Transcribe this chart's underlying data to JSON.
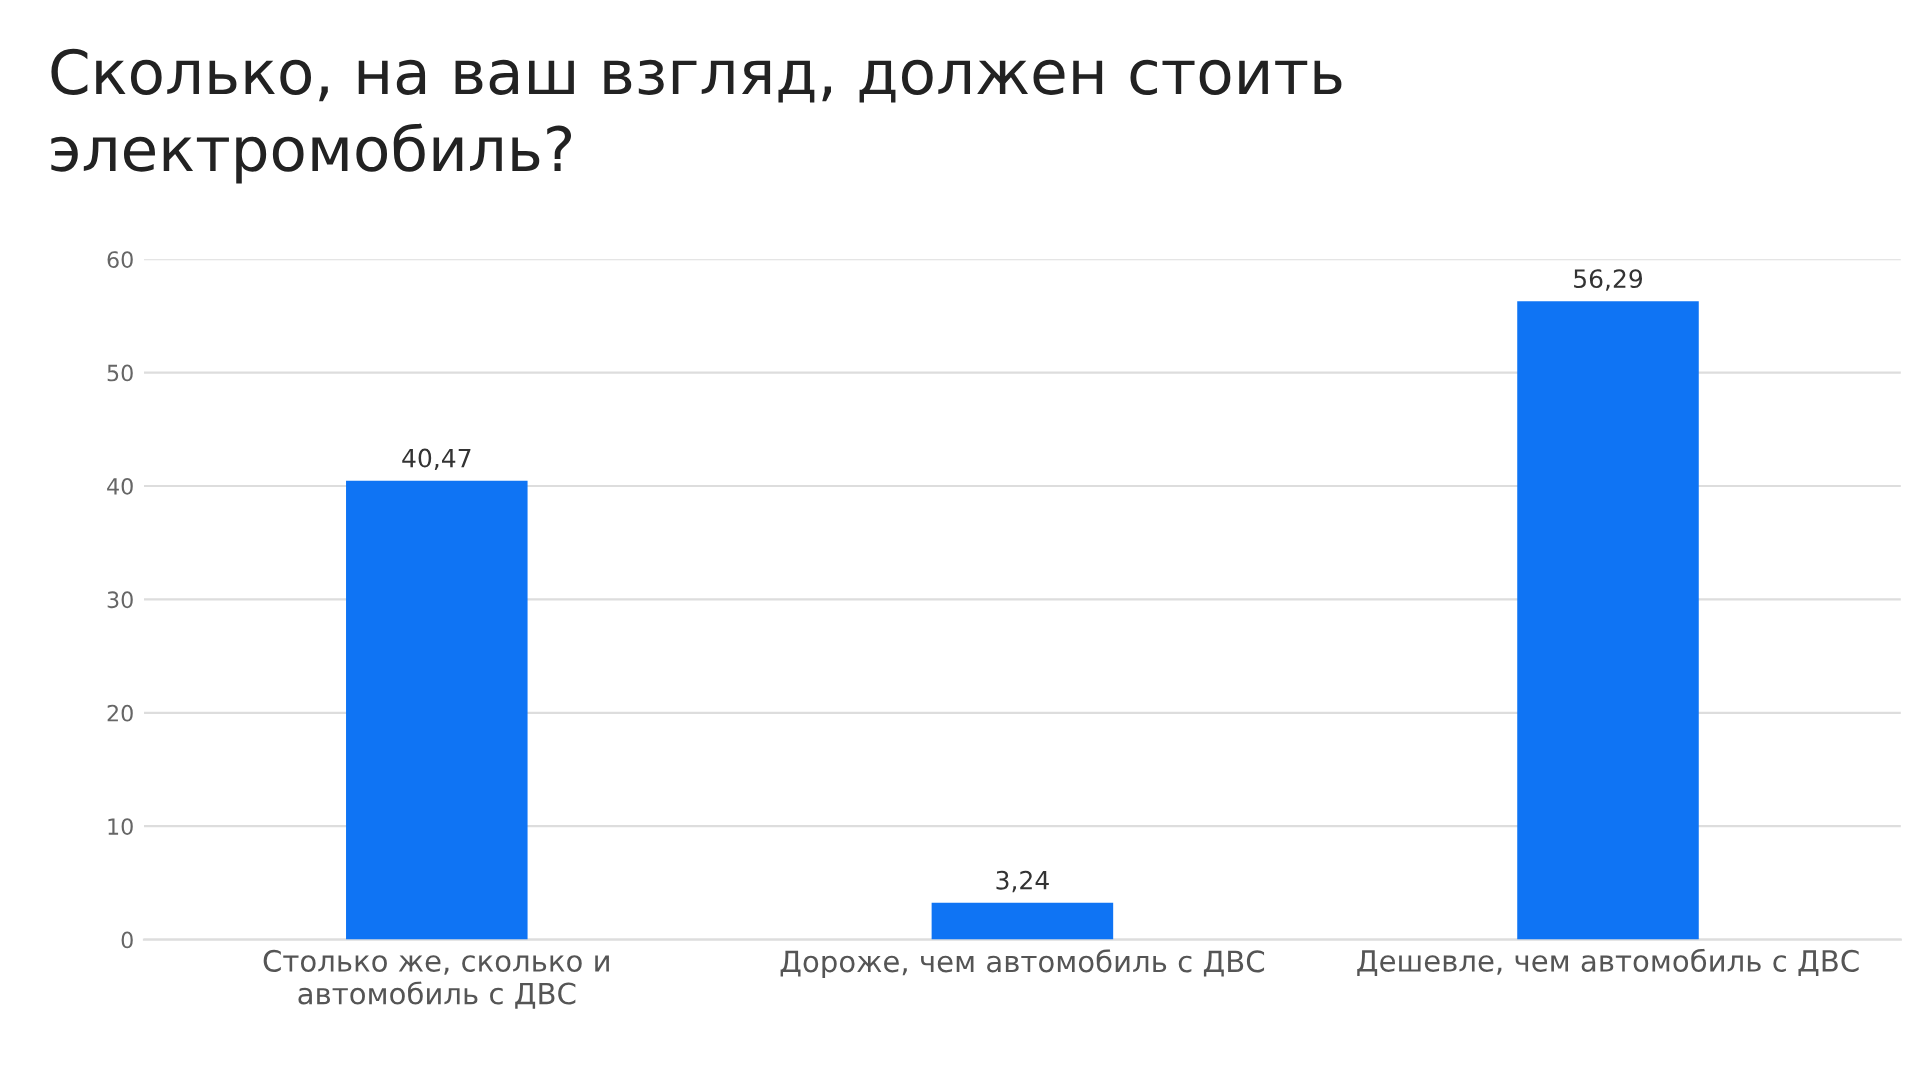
{
  "chart_data": {
    "type": "bar",
    "title": "Сколько, на ваш взгляд, должен стоить\nэлектромобиль?",
    "categories": [
      "Столько же, сколько и\nавтомобиль с ДВС",
      "Дороже, чем автомобиль с ДВС",
      "Дешевле, чем автомобиль с ДВС"
    ],
    "values": [
      40.47,
      3.24,
      56.29
    ],
    "value_labels": [
      "40,47",
      "3,24",
      "56,29"
    ],
    "color": "#0f74f4",
    "ylim": [
      0,
      60
    ],
    "yticks": [
      0,
      10,
      20,
      30,
      40,
      50,
      60
    ],
    "grid": "y",
    "legend": false
  }
}
